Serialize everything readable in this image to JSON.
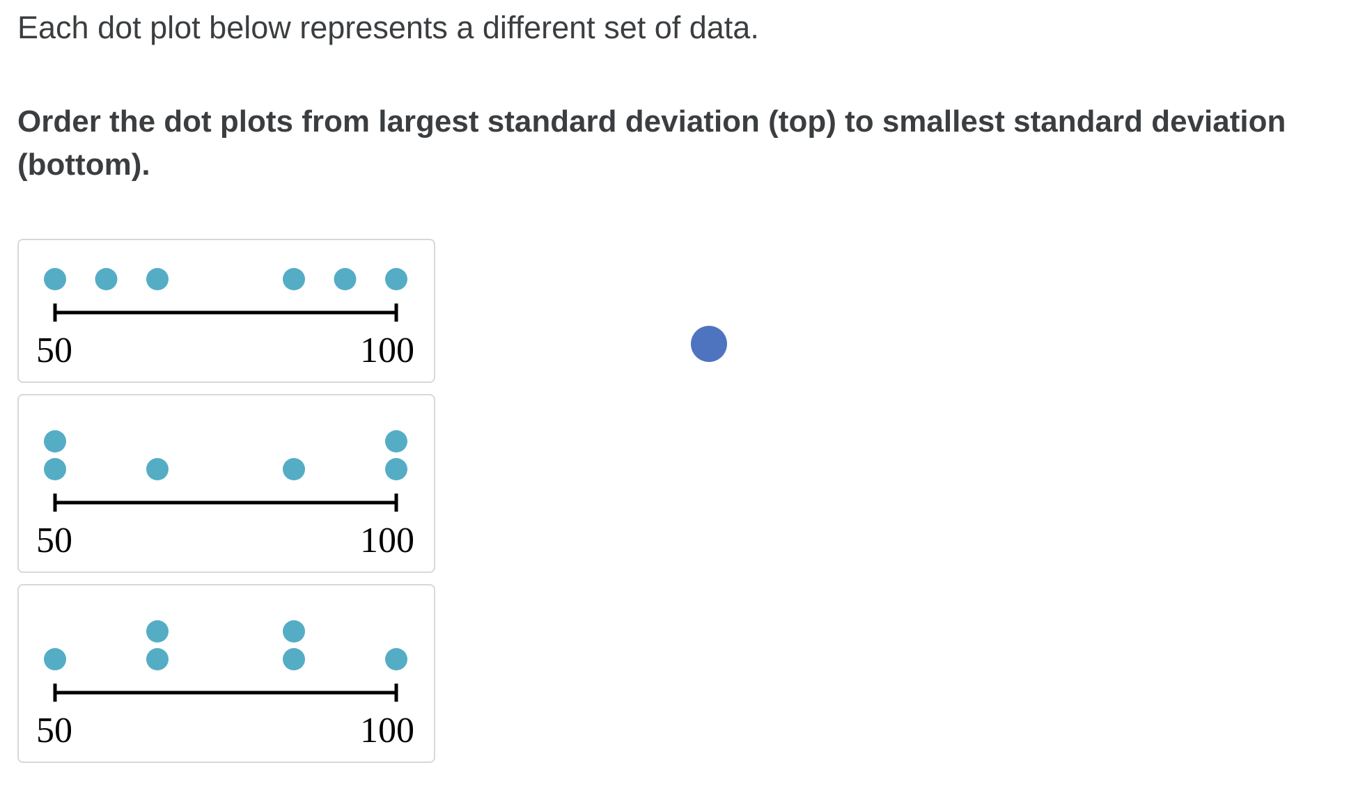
{
  "instructions": {
    "intro": "Each dot plot below represents a different set of data.",
    "prompt": "Order the dot plots from largest standard deviation (top) to smallest standard deviation (bottom)."
  },
  "colors": {
    "dot": "#54adc5",
    "axis": "#000000",
    "cursor": "#4e74c0",
    "card_border": "#d6d8da"
  },
  "chart_data": [
    {
      "type": "scatter",
      "subtype": "dot-plot",
      "xlim": [
        50,
        100
      ],
      "tick_labels": [
        "50",
        "100"
      ],
      "points": [
        {
          "x": 50,
          "count": 1
        },
        {
          "x": 57.5,
          "count": 1
        },
        {
          "x": 65,
          "count": 1
        },
        {
          "x": 85,
          "count": 1
        },
        {
          "x": 92.5,
          "count": 1
        },
        {
          "x": 100,
          "count": 1
        }
      ]
    },
    {
      "type": "scatter",
      "subtype": "dot-plot",
      "xlim": [
        50,
        100
      ],
      "tick_labels": [
        "50",
        "100"
      ],
      "points": [
        {
          "x": 50,
          "count": 2
        },
        {
          "x": 65,
          "count": 1
        },
        {
          "x": 85,
          "count": 1
        },
        {
          "x": 100,
          "count": 2
        }
      ]
    },
    {
      "type": "scatter",
      "subtype": "dot-plot",
      "xlim": [
        50,
        100
      ],
      "tick_labels": [
        "50",
        "100"
      ],
      "points": [
        {
          "x": 50,
          "count": 1
        },
        {
          "x": 65,
          "count": 2
        },
        {
          "x": 85,
          "count": 2
        },
        {
          "x": 100,
          "count": 1
        }
      ]
    }
  ]
}
